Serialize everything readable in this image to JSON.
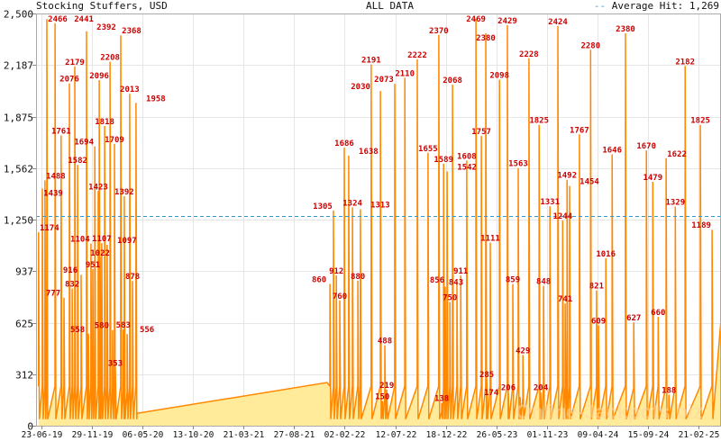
{
  "header": {
    "title": "Stocking Stuffers, USD",
    "range": "ALL DATA",
    "legend_label": "Average Hit: 1,269"
  },
  "watermark": "Online-Jackpots.biz",
  "colors": {
    "line": "#ff8800",
    "fill": "#ffeb99",
    "label": "#cc0000",
    "average": "#3399cc",
    "grid": "#e6e6e6"
  },
  "chart_data": {
    "type": "area",
    "title": "Stocking Stuffers, USD",
    "xlabel": "",
    "ylabel": "",
    "ylim": [
      0,
      2500
    ],
    "xlim": [
      "2019-06-06",
      "2025-05-03"
    ],
    "grid": true,
    "legend_placement": "top-right",
    "y_ticks": [
      {
        "value": 0,
        "label": "0"
      },
      {
        "value": 312,
        "label": "312"
      },
      {
        "value": 625,
        "label": "625"
      },
      {
        "value": 937,
        "label": "937"
      },
      {
        "value": 1250,
        "label": "1,250"
      },
      {
        "value": 1562,
        "label": "1,562"
      },
      {
        "value": 1875,
        "label": "1,875"
      },
      {
        "value": 2187,
        "label": "2,187"
      },
      {
        "value": 2500,
        "label": "2,500"
      }
    ],
    "x_ticks": [
      {
        "date": "2019-06-23",
        "label": "23-06-19"
      },
      {
        "date": "2019-11-29",
        "label": "29-11-19"
      },
      {
        "date": "2020-05-06",
        "label": "06-05-20"
      },
      {
        "date": "2020-10-13",
        "label": "13-10-20"
      },
      {
        "date": "2021-03-21",
        "label": "21-03-21"
      },
      {
        "date": "2021-08-27",
        "label": "27-08-21"
      },
      {
        "date": "2022-02-02",
        "label": "02-02-22"
      },
      {
        "date": "2022-07-12",
        "label": "12-07-22"
      },
      {
        "date": "2022-12-18",
        "label": "18-12-22"
      },
      {
        "date": "2023-05-26",
        "label": "26-05-23"
      },
      {
        "date": "2023-11-01",
        "label": "01-11-23"
      },
      {
        "date": "2024-04-09",
        "label": "09-04-24"
      },
      {
        "date": "2024-09-15",
        "label": "15-09-24"
      },
      {
        "date": "2025-02-21",
        "label": "21-02-25"
      }
    ],
    "average": {
      "value": 1269,
      "label": "Average Hit: 1,269"
    },
    "points": [
      {
        "date": "2019-06-14",
        "value": 1174,
        "label": true
      },
      {
        "date": "2019-06-26",
        "value": 1439,
        "label": true
      },
      {
        "date": "2019-07-04",
        "value": 1488,
        "label": true
      },
      {
        "date": "2019-07-10",
        "value": 2466,
        "label": true
      },
      {
        "date": "2019-08-05",
        "value": 2441,
        "label": true
      },
      {
        "date": "2019-08-24",
        "value": 1761,
        "label": true
      },
      {
        "date": "2019-09-02",
        "value": 777,
        "label": true
      },
      {
        "date": "2019-09-19",
        "value": 2076,
        "label": true
      },
      {
        "date": "2019-09-28",
        "value": 832,
        "label": true
      },
      {
        "date": "2019-10-06",
        "value": 2179,
        "label": true
      },
      {
        "date": "2019-10-15",
        "value": 1582,
        "label": true
      },
      {
        "date": "2019-10-26",
        "value": 916,
        "label": true
      },
      {
        "date": "2019-11-12",
        "value": 2392,
        "label": true
      },
      {
        "date": "2019-11-18",
        "value": 558,
        "label": true
      },
      {
        "date": "2019-11-26",
        "value": 1104,
        "label": true
      },
      {
        "date": "2019-12-02",
        "value": 951,
        "label": true
      },
      {
        "date": "2019-12-08",
        "value": 1694,
        "label": true
      },
      {
        "date": "2019-12-19",
        "value": 1423,
        "label": true
      },
      {
        "date": "2019-12-22",
        "value": 2096,
        "label": true
      },
      {
        "date": "2019-12-25",
        "value": 1022,
        "label": true
      },
      {
        "date": "2019-12-30",
        "value": 1107,
        "label": true
      },
      {
        "date": "2020-01-08",
        "value": 1818,
        "label": true
      },
      {
        "date": "2020-01-16",
        "value": 1097,
        "label": true
      },
      {
        "date": "2020-01-25",
        "value": 2208,
        "label": true
      },
      {
        "date": "2020-02-02",
        "value": 580,
        "label": true
      },
      {
        "date": "2020-02-08",
        "value": 1709,
        "label": true
      },
      {
        "date": "2020-02-11",
        "value": 353,
        "label": true
      },
      {
        "date": "2020-02-28",
        "value": 2368,
        "label": true
      },
      {
        "date": "2020-03-07",
        "value": 583,
        "label": true
      },
      {
        "date": "2020-03-10",
        "value": 1392,
        "label": true
      },
      {
        "date": "2020-03-19",
        "value": 556,
        "label": true
      },
      {
        "date": "2020-03-27",
        "value": 2013,
        "label": true
      },
      {
        "date": "2020-04-05",
        "value": 878,
        "label": true
      },
      {
        "date": "2020-04-16",
        "value": 1958,
        "label": true
      },
      {
        "date": "2020-04-19",
        "value": 75,
        "label": false
      },
      {
        "date": "2021-12-09",
        "value": 262,
        "label": false
      },
      {
        "date": "2021-12-18",
        "value": 860,
        "label": true
      },
      {
        "date": "2021-12-29",
        "value": 1305,
        "label": true
      },
      {
        "date": "2022-01-07",
        "value": 912,
        "label": true
      },
      {
        "date": "2022-01-18",
        "value": 760,
        "label": true
      },
      {
        "date": "2022-02-01",
        "value": 1686,
        "label": true
      },
      {
        "date": "2022-02-15",
        "value": 1638,
        "label": true
      },
      {
        "date": "2022-02-27",
        "value": 1324,
        "label": true
      },
      {
        "date": "2022-03-16",
        "value": 880,
        "label": true
      },
      {
        "date": "2022-03-24",
        "value": 1313,
        "label": true
      },
      {
        "date": "2022-04-27",
        "value": 2191,
        "label": true
      },
      {
        "date": "2022-05-26",
        "value": 2030,
        "label": true
      },
      {
        "date": "2022-06-01",
        "value": 150,
        "label": true
      },
      {
        "date": "2022-06-09",
        "value": 488,
        "label": true
      },
      {
        "date": "2022-06-15",
        "value": 219,
        "label": true
      },
      {
        "date": "2022-07-10",
        "value": 2073,
        "label": true
      },
      {
        "date": "2022-08-11",
        "value": 2110,
        "label": true
      },
      {
        "date": "2022-09-19",
        "value": 2222,
        "label": true
      },
      {
        "date": "2022-10-23",
        "value": 1655,
        "label": true
      },
      {
        "date": "2022-11-26",
        "value": 2370,
        "label": true
      },
      {
        "date": "2022-12-05",
        "value": 138,
        "label": true
      },
      {
        "date": "2022-12-11",
        "value": 1589,
        "label": true
      },
      {
        "date": "2022-12-16",
        "value": 843,
        "label": true
      },
      {
        "date": "2022-12-22",
        "value": 1542,
        "label": true
      },
      {
        "date": "2022-12-31",
        "value": 750,
        "label": true
      },
      {
        "date": "2023-01-08",
        "value": 2068,
        "label": true
      },
      {
        "date": "2023-01-22",
        "value": 856,
        "label": true
      },
      {
        "date": "2023-02-03",
        "value": 911,
        "label": true
      },
      {
        "date": "2023-02-22",
        "value": 1608,
        "label": true
      },
      {
        "date": "2023-03-23",
        "value": 2469,
        "label": true
      },
      {
        "date": "2023-04-09",
        "value": 1757,
        "label": true
      },
      {
        "date": "2023-04-23",
        "value": 2380,
        "label": true
      },
      {
        "date": "2023-04-26",
        "value": 285,
        "label": true
      },
      {
        "date": "2023-05-07",
        "value": 1111,
        "label": true
      },
      {
        "date": "2023-06-05",
        "value": 2098,
        "label": true
      },
      {
        "date": "2023-06-30",
        "value": 2429,
        "label": true
      },
      {
        "date": "2023-07-03",
        "value": 206,
        "label": true
      },
      {
        "date": "2023-07-17",
        "value": 859,
        "label": true
      },
      {
        "date": "2023-08-03",
        "value": 1563,
        "label": true
      },
      {
        "date": "2023-08-09",
        "value": 174,
        "label": true
      },
      {
        "date": "2023-08-18",
        "value": 429,
        "label": true
      },
      {
        "date": "2023-09-06",
        "value": 2228,
        "label": true
      },
      {
        "date": "2023-10-08",
        "value": 1825,
        "label": true
      },
      {
        "date": "2023-10-13",
        "value": 204,
        "label": true
      },
      {
        "date": "2023-10-22",
        "value": 848,
        "label": true
      },
      {
        "date": "2023-11-11",
        "value": 1331,
        "label": true
      },
      {
        "date": "2023-12-06",
        "value": 2424,
        "label": true
      },
      {
        "date": "2023-12-21",
        "value": 1244,
        "label": true
      },
      {
        "date": "2023-12-29",
        "value": 741,
        "label": true
      },
      {
        "date": "2024-01-04",
        "value": 1492,
        "label": true
      },
      {
        "date": "2024-01-12",
        "value": 1454,
        "label": true
      },
      {
        "date": "2024-02-12",
        "value": 1767,
        "label": true
      },
      {
        "date": "2024-03-18",
        "value": 2280,
        "label": true
      },
      {
        "date": "2024-04-06",
        "value": 821,
        "label": true
      },
      {
        "date": "2024-04-12",
        "value": 609,
        "label": true
      },
      {
        "date": "2024-05-05",
        "value": 1016,
        "label": true
      },
      {
        "date": "2024-05-25",
        "value": 1646,
        "label": true
      },
      {
        "date": "2024-07-06",
        "value": 2380,
        "label": true
      },
      {
        "date": "2024-08-01",
        "value": 627,
        "label": true
      },
      {
        "date": "2024-09-10",
        "value": 1670,
        "label": true
      },
      {
        "date": "2024-09-30",
        "value": 1479,
        "label": true
      },
      {
        "date": "2024-10-17",
        "value": 660,
        "label": true
      },
      {
        "date": "2024-11-11",
        "value": 1622,
        "label": true
      },
      {
        "date": "2024-11-20",
        "value": 188,
        "label": true
      },
      {
        "date": "2024-12-10",
        "value": 1329,
        "label": true
      },
      {
        "date": "2025-01-10",
        "value": 2182,
        "label": true
      },
      {
        "date": "2025-02-27",
        "value": 1825,
        "label": true
      },
      {
        "date": "2025-04-05",
        "value": 1189,
        "label": true
      },
      {
        "date": "2025-05-03",
        "value": 644,
        "label": false
      }
    ]
  }
}
